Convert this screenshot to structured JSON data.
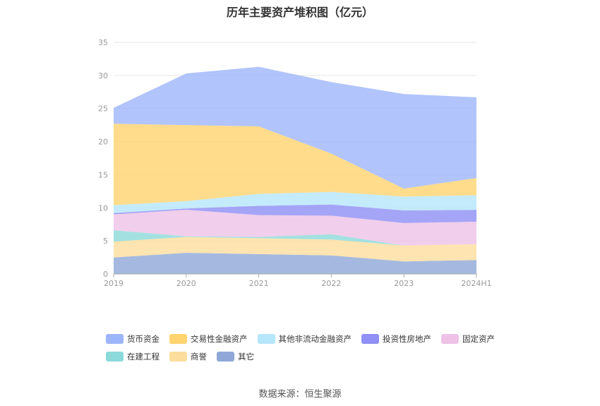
{
  "source_text": "数据来源：恒生聚源",
  "chart_data": {
    "type": "area",
    "stacked": true,
    "title": "历年主要资产堆积图（亿元）",
    "xlabel": "",
    "ylabel": "",
    "categories": [
      "2019",
      "2020",
      "2021",
      "2022",
      "2023",
      "2024H1"
    ],
    "ylim": [
      0,
      35
    ],
    "yticks": [
      0,
      5,
      10,
      15,
      20,
      25,
      30,
      35
    ],
    "grid": true,
    "legend_position": "bottom",
    "series": [
      {
        "name": "其它",
        "color": "#8fa8d8",
        "values": [
          2.5,
          3.2,
          3.0,
          2.8,
          1.9,
          2.1
        ]
      },
      {
        "name": "商誉",
        "color": "#fddd9c",
        "values": [
          2.4,
          2.4,
          2.4,
          2.4,
          2.4,
          2.4
        ]
      },
      {
        "name": "在建工程",
        "color": "#8cd9d9",
        "values": [
          1.7,
          0.1,
          0.2,
          0.8,
          0.0,
          0.0
        ]
      },
      {
        "name": "固定资产",
        "color": "#edc2e6",
        "values": [
          2.4,
          4.0,
          3.3,
          2.8,
          3.4,
          3.4
        ]
      },
      {
        "name": "投资性房地产",
        "color": "#8f8ff5",
        "values": [
          0.2,
          0.2,
          1.4,
          1.7,
          1.9,
          1.8
        ]
      },
      {
        "name": "其他非流动金融资产",
        "color": "#b5e6fa",
        "values": [
          1.2,
          1.1,
          1.8,
          1.9,
          2.1,
          2.2
        ]
      },
      {
        "name": "交易性金融资产",
        "color": "#ffd36e",
        "values": [
          12.3,
          11.5,
          10.2,
          5.8,
          1.2,
          2.6
        ]
      },
      {
        "name": "货币资金",
        "color": "#9db5fa",
        "values": [
          2.4,
          7.8,
          9.0,
          10.8,
          14.3,
          12.2
        ]
      }
    ],
    "legend_order": [
      "货币资金",
      "交易性金融资产",
      "其他非流动金融资产",
      "投资性房地产",
      "固定资产",
      "在建工程",
      "商誉",
      "其它"
    ]
  }
}
